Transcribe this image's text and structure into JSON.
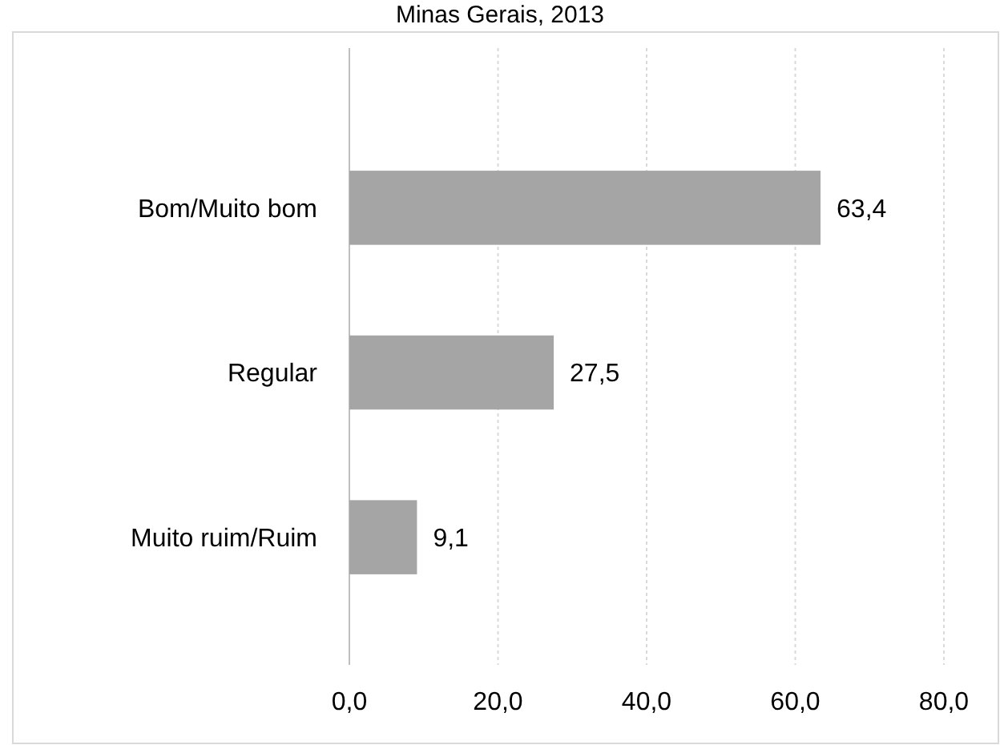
{
  "chart_data": {
    "type": "bar",
    "orientation": "horizontal",
    "title": "Minas Gerais, 2013",
    "categories": [
      "Bom/Muito bom",
      "Regular",
      "Muito ruim/Ruim"
    ],
    "values": [
      63.4,
      27.5,
      9.1
    ],
    "color": "#a5a5a5",
    "value_labels": [
      "63,4",
      "27,5",
      "9,1"
    ],
    "xlim": [
      0,
      80
    ],
    "xticks": [
      {
        "value": 0,
        "label": "0,0"
      },
      {
        "value": 20,
        "label": "20,0"
      },
      {
        "value": 40,
        "label": "40,0"
      },
      {
        "value": 60,
        "label": "60,0"
      },
      {
        "value": 80,
        "label": "80,0"
      }
    ],
    "grid": "x"
  }
}
